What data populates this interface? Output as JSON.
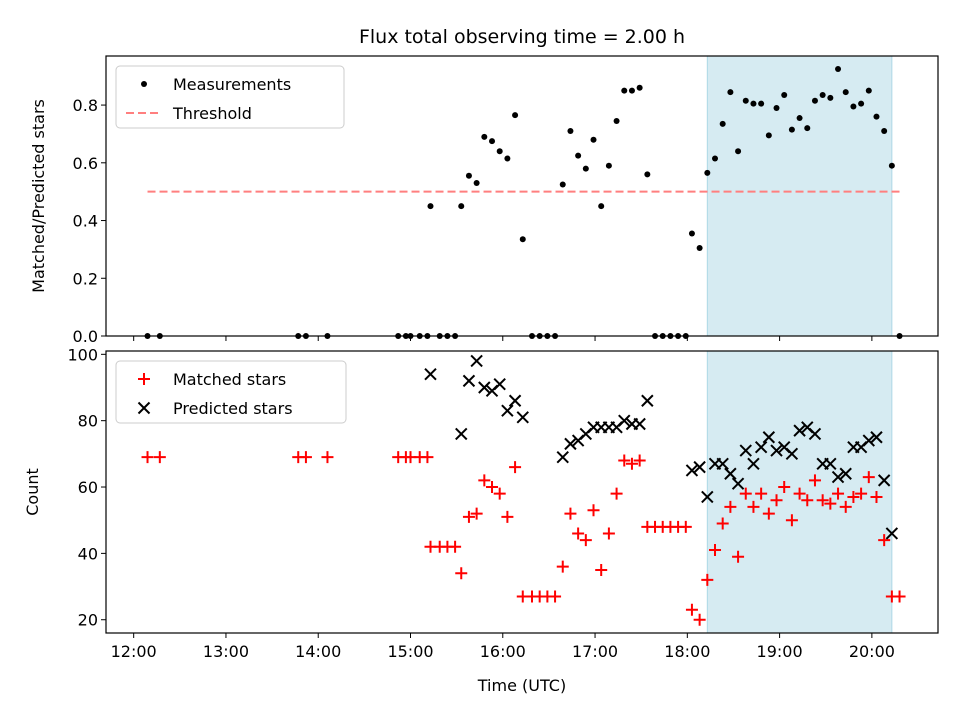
{
  "chart_data": {
    "title": "Flux total observing time = 2.00 h",
    "xlabel": "Time (UTC)",
    "x_ticks": [
      "12:00",
      "13:00",
      "14:00",
      "15:00",
      "16:00",
      "17:00",
      "18:00",
      "19:00",
      "20:00"
    ],
    "shaded_interval": [
      "18:13",
      "20:13"
    ],
    "shade_color": "#add8e6",
    "panels": [
      {
        "type": "scatter",
        "ylabel": "Matched/Predicted stars",
        "ylim": [
          0,
          0.97
        ],
        "y_ticks": [
          "0.0",
          "0.2",
          "0.4",
          "0.6",
          "0.8"
        ],
        "legend_position": "top-left",
        "series": [
          {
            "name": "Measurements",
            "marker": "dot",
            "color": "#000000",
            "points": [
              [
                "12:09",
                0.0
              ],
              [
                "12:17",
                0.0
              ],
              [
                "13:47",
                0.0
              ],
              [
                "13:52",
                0.0
              ],
              [
                "14:06",
                0.0
              ],
              [
                "14:52",
                0.0
              ],
              [
                "14:57",
                0.0
              ],
              [
                "15:00",
                0.0
              ],
              [
                "15:06",
                0.0
              ],
              [
                "15:11",
                0.0
              ],
              [
                "15:13",
                0.45
              ],
              [
                "15:19",
                0.0
              ],
              [
                "15:24",
                0.0
              ],
              [
                "15:29",
                0.0
              ],
              [
                "15:33",
                0.45
              ],
              [
                "15:38",
                0.555
              ],
              [
                "15:43",
                0.53
              ],
              [
                "15:48",
                0.69
              ],
              [
                "15:53",
                0.675
              ],
              [
                "15:58",
                0.64
              ],
              [
                "16:03",
                0.615
              ],
              [
                "16:08",
                0.765
              ],
              [
                "16:13",
                0.335
              ],
              [
                "16:19",
                0.0
              ],
              [
                "16:24",
                0.0
              ],
              [
                "16:29",
                0.0
              ],
              [
                "16:34",
                0.0
              ],
              [
                "16:39",
                0.525
              ],
              [
                "16:44",
                0.71
              ],
              [
                "16:49",
                0.625
              ],
              [
                "16:54",
                0.58
              ],
              [
                "16:59",
                0.68
              ],
              [
                "17:04",
                0.45
              ],
              [
                "17:09",
                0.59
              ],
              [
                "17:14",
                0.745
              ],
              [
                "17:19",
                0.85
              ],
              [
                "17:24",
                0.85
              ],
              [
                "17:29",
                0.86
              ],
              [
                "17:34",
                0.56
              ],
              [
                "17:39",
                0.0
              ],
              [
                "17:44",
                0.0
              ],
              [
                "17:49",
                0.0
              ],
              [
                "17:54",
                0.0
              ],
              [
                "17:59",
                0.0
              ],
              [
                "18:03",
                0.355
              ],
              [
                "18:08",
                0.305
              ],
              [
                "18:13",
                0.565
              ],
              [
                "18:18",
                0.615
              ],
              [
                "18:23",
                0.735
              ],
              [
                "18:28",
                0.845
              ],
              [
                "18:33",
                0.64
              ],
              [
                "18:38",
                0.815
              ],
              [
                "18:43",
                0.805
              ],
              [
                "18:48",
                0.805
              ],
              [
                "18:53",
                0.695
              ],
              [
                "18:58",
                0.79
              ],
              [
                "19:03",
                0.835
              ],
              [
                "19:08",
                0.715
              ],
              [
                "19:13",
                0.755
              ],
              [
                "19:18",
                0.72
              ],
              [
                "19:23",
                0.815
              ],
              [
                "19:28",
                0.835
              ],
              [
                "19:33",
                0.825
              ],
              [
                "19:38",
                0.925
              ],
              [
                "19:43",
                0.845
              ],
              [
                "19:48",
                0.795
              ],
              [
                "19:53",
                0.805
              ],
              [
                "19:58",
                0.85
              ],
              [
                "20:03",
                0.76
              ],
              [
                "20:08",
                0.71
              ],
              [
                "20:13",
                0.59
              ],
              [
                "20:18",
                0.0
              ]
            ]
          },
          {
            "name": "Threshold",
            "line": "dashed",
            "color": "#ff7f7f",
            "x": [
              "12:09",
              "20:18"
            ],
            "y": [
              0.5,
              0.5
            ]
          }
        ]
      },
      {
        "type": "scatter",
        "ylabel": "Count",
        "ylim": [
          16,
          101
        ],
        "y_ticks": [
          "20",
          "40",
          "60",
          "80",
          "100"
        ],
        "legend_position": "top-left",
        "series": [
          {
            "name": "Matched stars",
            "marker": "plus",
            "color": "#ff0000",
            "points": [
              [
                "12:09",
                69
              ],
              [
                "12:17",
                69
              ],
              [
                "13:47",
                69
              ],
              [
                "13:52",
                69
              ],
              [
                "14:06",
                69
              ],
              [
                "14:52",
                69
              ],
              [
                "14:57",
                69
              ],
              [
                "15:00",
                69
              ],
              [
                "15:06",
                69
              ],
              [
                "15:11",
                69
              ],
              [
                "15:13",
                42
              ],
              [
                "15:19",
                42
              ],
              [
                "15:24",
                42
              ],
              [
                "15:29",
                42
              ],
              [
                "15:33",
                34
              ],
              [
                "15:38",
                51
              ],
              [
                "15:43",
                52
              ],
              [
                "15:48",
                62
              ],
              [
                "15:53",
                60
              ],
              [
                "15:58",
                58
              ],
              [
                "16:03",
                51
              ],
              [
                "16:08",
                66
              ],
              [
                "16:13",
                27
              ],
              [
                "16:19",
                27
              ],
              [
                "16:24",
                27
              ],
              [
                "16:29",
                27
              ],
              [
                "16:34",
                27
              ],
              [
                "16:39",
                36
              ],
              [
                "16:44",
                52
              ],
              [
                "16:49",
                46
              ],
              [
                "16:54",
                44
              ],
              [
                "16:59",
                53
              ],
              [
                "17:04",
                35
              ],
              [
                "17:09",
                46
              ],
              [
                "17:14",
                58
              ],
              [
                "17:19",
                68
              ],
              [
                "17:24",
                67
              ],
              [
                "17:29",
                68
              ],
              [
                "17:34",
                48
              ],
              [
                "17:39",
                48
              ],
              [
                "17:44",
                48
              ],
              [
                "17:49",
                48
              ],
              [
                "17:54",
                48
              ],
              [
                "17:59",
                48
              ],
              [
                "18:03",
                23
              ],
              [
                "18:08",
                20
              ],
              [
                "18:13",
                32
              ],
              [
                "18:18",
                41
              ],
              [
                "18:23",
                49
              ],
              [
                "18:28",
                54
              ],
              [
                "18:33",
                39
              ],
              [
                "18:38",
                58
              ],
              [
                "18:43",
                54
              ],
              [
                "18:48",
                58
              ],
              [
                "18:53",
                52
              ],
              [
                "18:58",
                56
              ],
              [
                "19:03",
                60
              ],
              [
                "19:08",
                50
              ],
              [
                "19:13",
                58
              ],
              [
                "19:18",
                56
              ],
              [
                "19:23",
                62
              ],
              [
                "19:28",
                56
              ],
              [
                "19:33",
                55
              ],
              [
                "19:38",
                58
              ],
              [
                "19:43",
                54
              ],
              [
                "19:48",
                57
              ],
              [
                "19:53",
                58
              ],
              [
                "19:58",
                63
              ],
              [
                "20:03",
                57
              ],
              [
                "20:08",
                44
              ],
              [
                "20:13",
                27
              ],
              [
                "20:18",
                27
              ]
            ]
          },
          {
            "name": "Predicted stars",
            "marker": "x",
            "color": "#000000",
            "points": [
              [
                "15:13",
                94
              ],
              [
                "15:33",
                76
              ],
              [
                "15:38",
                92
              ],
              [
                "15:43",
                98
              ],
              [
                "15:48",
                90
              ],
              [
                "15:53",
                89
              ],
              [
                "15:58",
                91
              ],
              [
                "16:03",
                83
              ],
              [
                "16:08",
                86
              ],
              [
                "16:13",
                81
              ],
              [
                "16:39",
                69
              ],
              [
                "16:44",
                73
              ],
              [
                "16:49",
                74
              ],
              [
                "16:54",
                76
              ],
              [
                "16:59",
                78
              ],
              [
                "17:04",
                78
              ],
              [
                "17:09",
                78
              ],
              [
                "17:14",
                78
              ],
              [
                "17:19",
                80
              ],
              [
                "17:24",
                79
              ],
              [
                "17:29",
                79
              ],
              [
                "17:34",
                86
              ],
              [
                "18:03",
                65
              ],
              [
                "18:08",
                66
              ],
              [
                "18:13",
                57
              ],
              [
                "18:18",
                67
              ],
              [
                "18:23",
                67
              ],
              [
                "18:28",
                64
              ],
              [
                "18:33",
                61
              ],
              [
                "18:38",
                71
              ],
              [
                "18:43",
                67
              ],
              [
                "18:48",
                72
              ],
              [
                "18:53",
                75
              ],
              [
                "18:58",
                71
              ],
              [
                "19:03",
                72
              ],
              [
                "19:08",
                70
              ],
              [
                "19:13",
                77
              ],
              [
                "19:18",
                78
              ],
              [
                "19:23",
                76
              ],
              [
                "19:28",
                67
              ],
              [
                "19:33",
                67
              ],
              [
                "19:38",
                63
              ],
              [
                "19:43",
                64
              ],
              [
                "19:48",
                72
              ],
              [
                "19:53",
                72
              ],
              [
                "19:58",
                74
              ],
              [
                "20:03",
                75
              ],
              [
                "20:08",
                62
              ],
              [
                "20:13",
                46
              ]
            ]
          }
        ]
      }
    ]
  }
}
